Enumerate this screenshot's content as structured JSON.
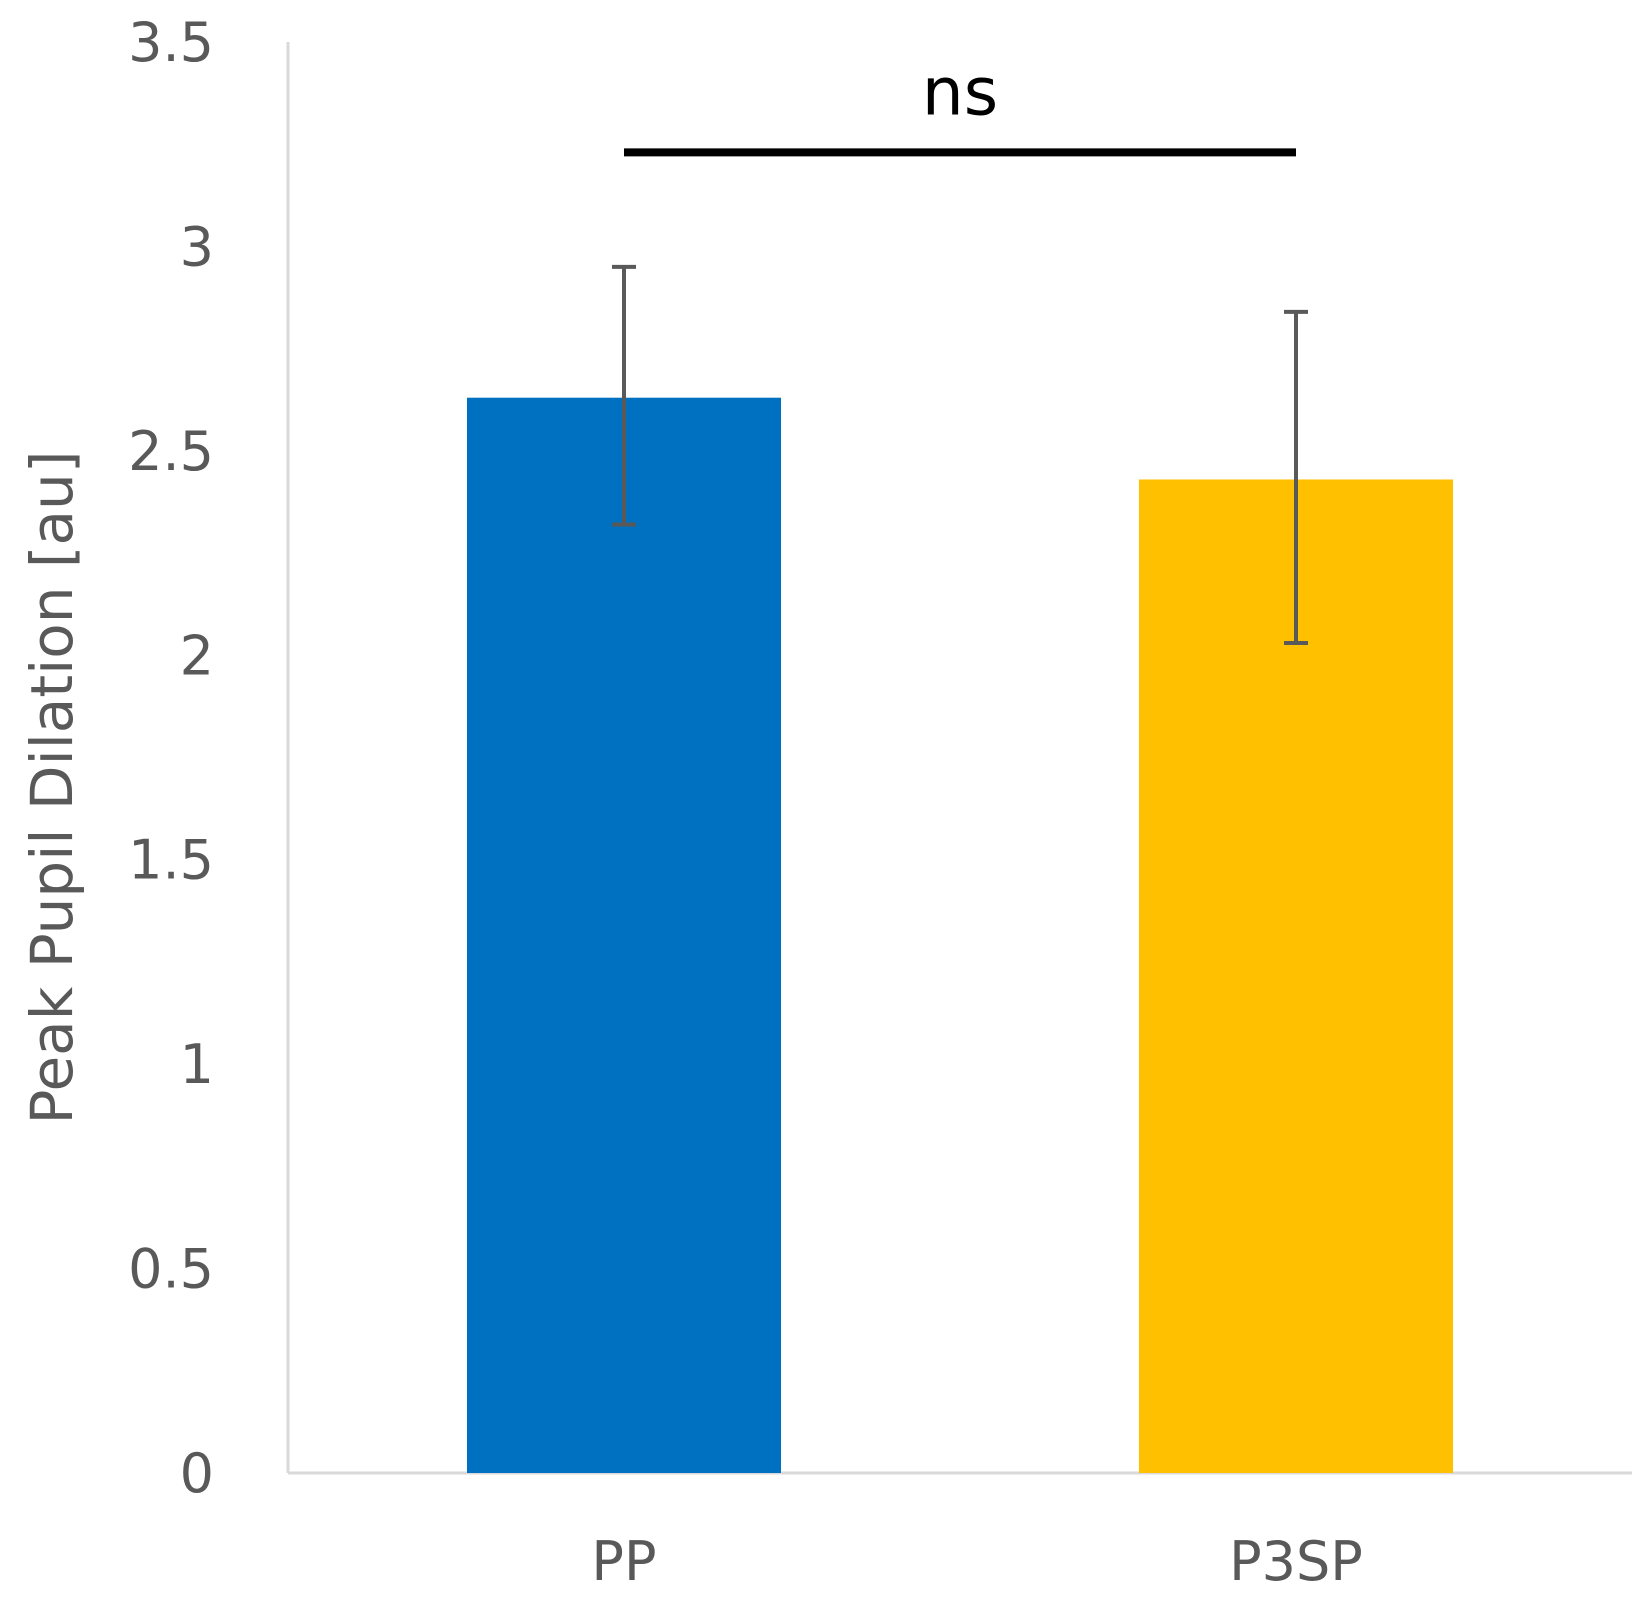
{
  "chart_data": {
    "type": "bar",
    "title": "",
    "xlabel": "",
    "ylabel": "Peak Pupil Dilation [au]",
    "categories": [
      "PP",
      "P3SP"
    ],
    "values": [
      2.63,
      2.43
    ],
    "error_bars": [
      {
        "low": 2.32,
        "high": 2.95
      },
      {
        "low": 2.03,
        "high": 2.84
      }
    ],
    "colors": [
      "#0070C0",
      "#FFC000"
    ],
    "ylim": [
      0,
      3.5
    ],
    "yticks": [
      0,
      0.5,
      1,
      1.5,
      2,
      2.5,
      3,
      3.5
    ],
    "ytick_labels": [
      "0",
      "0.5",
      "1",
      "1.5",
      "2",
      "2.5",
      "3",
      "3.5"
    ],
    "grid": false,
    "significance": {
      "label": "ns",
      "between": [
        "PP",
        "P3SP"
      ],
      "y": 3.23
    }
  }
}
